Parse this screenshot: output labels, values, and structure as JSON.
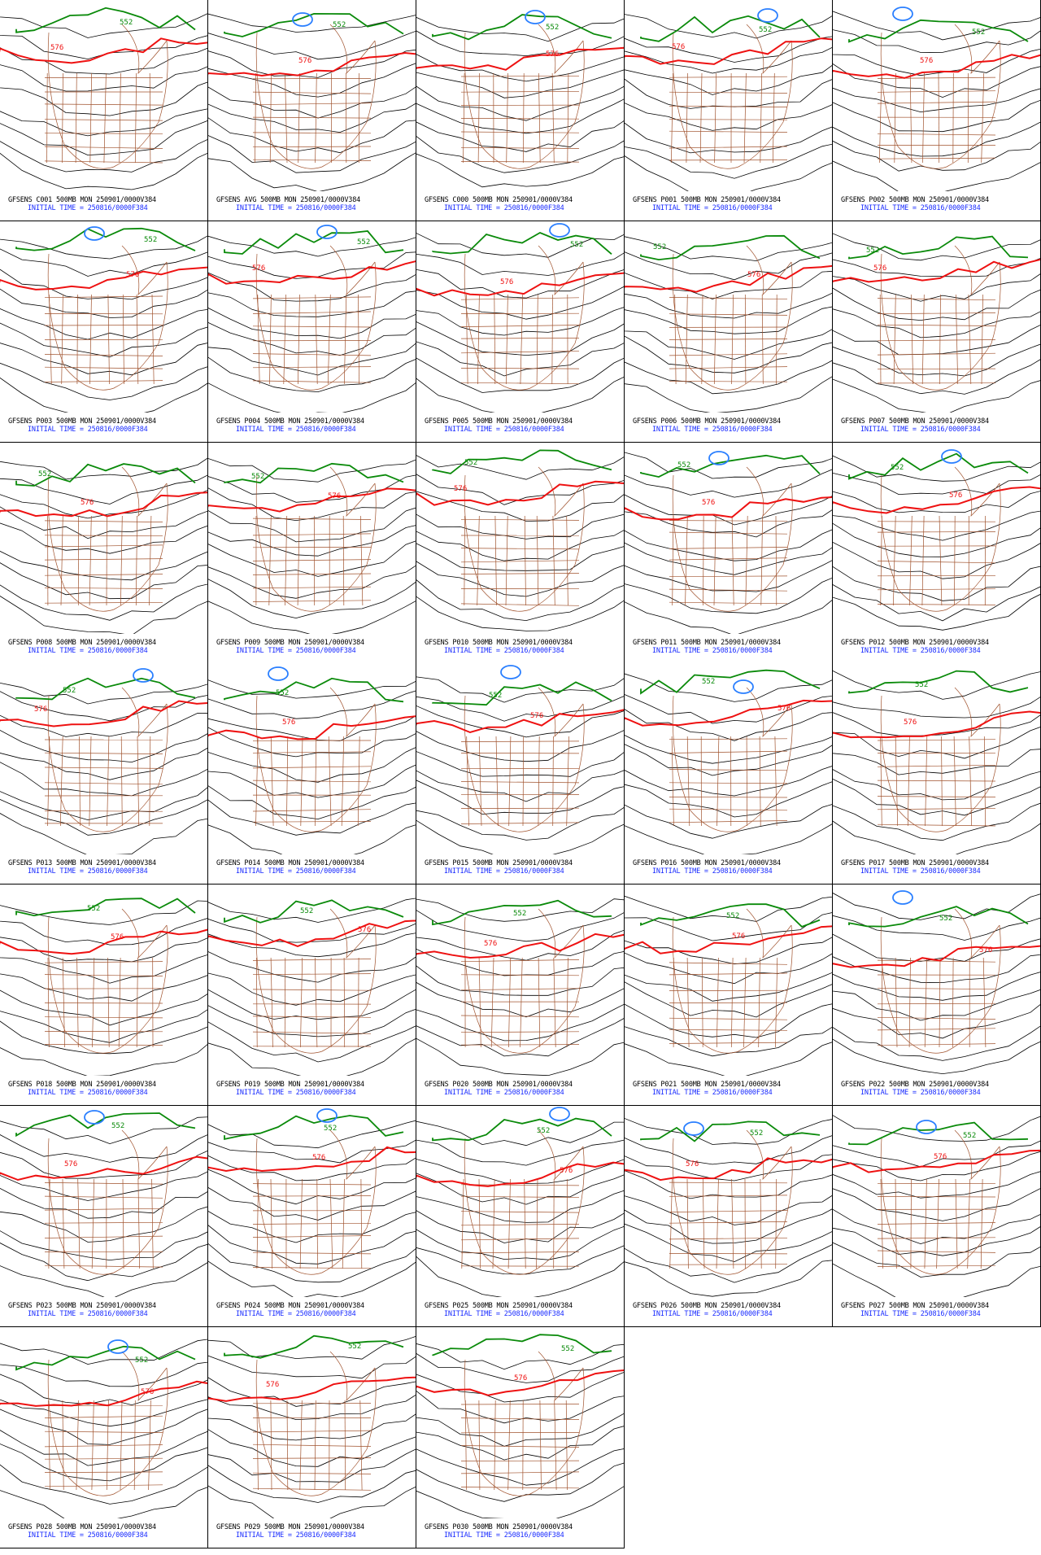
{
  "figure": {
    "initial_time_text": "INITIAL TIME = 250816/0000F384",
    "contour_labels": {
      "green": "552",
      "red": "576"
    },
    "colors": {
      "contour": "#000000",
      "line_552": "#0a8a0a",
      "line_576": "#ee1111",
      "low": "#2a7fff",
      "borders": "#a0522d",
      "caption_time": "#1a2cff"
    }
  },
  "panels": [
    {
      "title": "GFSENS C001 500MB MON 250901/0000V384"
    },
    {
      "title": "GFSENS AVG 500MB MON 250901/0000V384"
    },
    {
      "title": "GFSENS C000 500MB MON 250901/0000V384"
    },
    {
      "title": "GFSENS P001 500MB MON 250901/0000V384"
    },
    {
      "title": "GFSENS P002 500MB MON 250901/0000V384"
    },
    {
      "title": "GFSENS P003 500MB MON 250901/0000V384"
    },
    {
      "title": "GFSENS P004 500MB MON 250901/0000V384"
    },
    {
      "title": "GFSENS P005 500MB MON 250901/0000V384"
    },
    {
      "title": "GFSENS P006 500MB MON 250901/0000V384"
    },
    {
      "title": "GFSENS P007 500MB MON 250901/0000V384"
    },
    {
      "title": "GFSENS P008 500MB MON 250901/0000V384"
    },
    {
      "title": "GFSENS P009 500MB MON 250901/0000V384"
    },
    {
      "title": "GFSENS P010 500MB MON 250901/0000V384"
    },
    {
      "title": "GFSENS P011 500MB MON 250901/0000V384"
    },
    {
      "title": "GFSENS P012 500MB MON 250901/0000V384"
    },
    {
      "title": "GFSENS P013 500MB MON 250901/0000V384"
    },
    {
      "title": "GFSENS P014 500MB MON 250901/0000V384"
    },
    {
      "title": "GFSENS P015 500MB MON 250901/0000V384"
    },
    {
      "title": "GFSENS P016 500MB MON 250901/0000V384"
    },
    {
      "title": "GFSENS P017 500MB MON 250901/0000V384"
    },
    {
      "title": "GFSENS P018 500MB MON 250901/0000V384"
    },
    {
      "title": "GFSENS P019 500MB MON 250901/0000V384"
    },
    {
      "title": "GFSENS P020 500MB MON 250901/0000V384"
    },
    {
      "title": "GFSENS P021 500MB MON 250901/0000V384"
    },
    {
      "title": "GFSENS P022 500MB MON 250901/0000V384"
    },
    {
      "title": "GFSENS P023 500MB MON 250901/0000V384"
    },
    {
      "title": "GFSENS P024 500MB MON 250901/0000V384"
    },
    {
      "title": "GFSENS P025 500MB MON 250901/0000V384"
    },
    {
      "title": "GFSENS P026 500MB MON 250901/0000V384"
    },
    {
      "title": "GFSENS P027 500MB MON 250901/0000V384"
    },
    {
      "title": "GFSENS P028 500MB MON 250901/0000V384"
    },
    {
      "title": "GFSENS P029 500MB MON 250901/0000V384"
    },
    {
      "title": "GFSENS P030 500MB MON 250901/0000V384"
    }
  ]
}
